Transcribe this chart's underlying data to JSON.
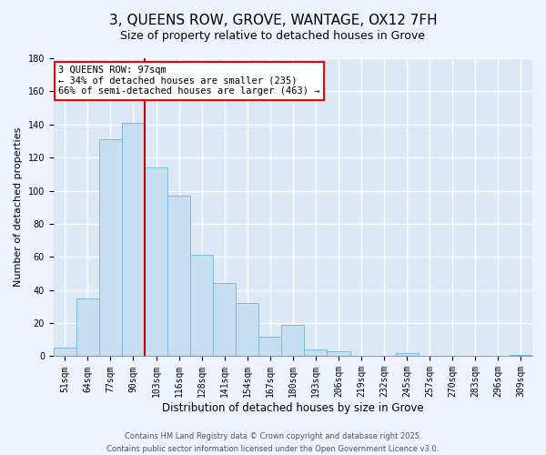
{
  "title": "3, QUEENS ROW, GROVE, WANTAGE, OX12 7FH",
  "subtitle": "Size of property relative to detached houses in Grove",
  "xlabel": "Distribution of detached houses by size in Grove",
  "ylabel": "Number of detached properties",
  "bar_color": "#c5dff0",
  "bar_edge_color": "#7fb8d8",
  "categories": [
    "51sqm",
    "64sqm",
    "77sqm",
    "90sqm",
    "103sqm",
    "116sqm",
    "128sqm",
    "141sqm",
    "154sqm",
    "167sqm",
    "180sqm",
    "193sqm",
    "206sqm",
    "219sqm",
    "232sqm",
    "245sqm",
    "257sqm",
    "270sqm",
    "283sqm",
    "296sqm",
    "309sqm"
  ],
  "values": [
    5,
    35,
    131,
    141,
    114,
    97,
    61,
    44,
    32,
    12,
    19,
    4,
    3,
    0,
    0,
    2,
    0,
    0,
    0,
    0,
    1
  ],
  "ylim": [
    0,
    180
  ],
  "yticks": [
    0,
    20,
    40,
    60,
    80,
    100,
    120,
    140,
    160,
    180
  ],
  "annotation_text": "3 QUEENS ROW: 97sqm\n← 34% of detached houses are smaller (235)\n66% of semi-detached houses are larger (463) →",
  "footer_line1": "Contains HM Land Registry data © Crown copyright and database right 2025.",
  "footer_line2": "Contains public sector information licensed under the Open Government Licence v3.0.",
  "property_bar_index": 4,
  "background_color": "#eef2fb",
  "grid_color": "#ffffff",
  "plot_bg_color": "#dce8f5",
  "vline_color": "#cc0000",
  "title_fontsize": 11,
  "subtitle_fontsize": 9,
  "ylabel_fontsize": 8,
  "xlabel_fontsize": 8.5,
  "tick_fontsize": 7,
  "annot_fontsize": 7.5,
  "footer_fontsize": 6
}
